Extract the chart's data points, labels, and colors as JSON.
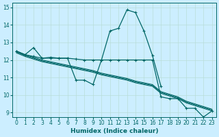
{
  "title": "",
  "xlabel": "Humidex (Indice chaleur)",
  "ylabel": "",
  "background_color": "#cceeff",
  "grid_color": "#b8ddd8",
  "line_color": "#006666",
  "x": [
    0,
    1,
    2,
    3,
    4,
    5,
    6,
    7,
    8,
    9,
    10,
    11,
    12,
    13,
    14,
    15,
    16,
    17,
    18,
    19,
    20,
    21,
    22,
    23
  ],
  "main_y": [
    12.5,
    12.3,
    12.7,
    12.1,
    12.15,
    12.1,
    12.1,
    10.85,
    10.85,
    10.6,
    12.0,
    13.65,
    13.8,
    14.85,
    14.7,
    13.65,
    12.25,
    10.5,
    null,
    null,
    null,
    null,
    null,
    null
  ],
  "flat_y": [
    12.5,
    12.3,
    12.2,
    12.1,
    12.1,
    12.1,
    12.1,
    12.05,
    12.0,
    12.0,
    12.0,
    12.0,
    12.0,
    12.0,
    12.0,
    12.0,
    12.0,
    9.9,
    9.8,
    9.8,
    9.25,
    9.25,
    8.75,
    9.1
  ],
  "reg1": [
    12.5,
    12.3,
    12.15,
    12.0,
    11.9,
    11.8,
    11.7,
    11.6,
    11.5,
    11.4,
    11.25,
    11.15,
    11.05,
    10.95,
    10.8,
    10.7,
    10.6,
    10.2,
    10.05,
    9.9,
    9.65,
    9.5,
    9.35,
    9.2
  ],
  "reg2": [
    12.45,
    12.25,
    12.1,
    11.95,
    11.85,
    11.75,
    11.65,
    11.55,
    11.45,
    11.35,
    11.2,
    11.1,
    11.0,
    10.9,
    10.75,
    10.65,
    10.55,
    10.15,
    10.0,
    9.85,
    9.6,
    9.45,
    9.3,
    9.15
  ],
  "reg3": [
    12.4,
    12.2,
    12.05,
    11.9,
    11.8,
    11.7,
    11.6,
    11.5,
    11.4,
    11.3,
    11.15,
    11.05,
    10.95,
    10.85,
    10.7,
    10.6,
    10.5,
    10.1,
    9.95,
    9.8,
    9.55,
    9.4,
    9.25,
    9.1
  ],
  "ylim": [
    8.75,
    15.25
  ],
  "xlim": [
    -0.5,
    23.5
  ],
  "yticks": [
    9,
    10,
    11,
    12,
    13,
    14,
    15
  ],
  "xticks": [
    0,
    1,
    2,
    3,
    4,
    5,
    6,
    7,
    8,
    9,
    10,
    11,
    12,
    13,
    14,
    15,
    16,
    17,
    18,
    19,
    20,
    21,
    22,
    23
  ]
}
